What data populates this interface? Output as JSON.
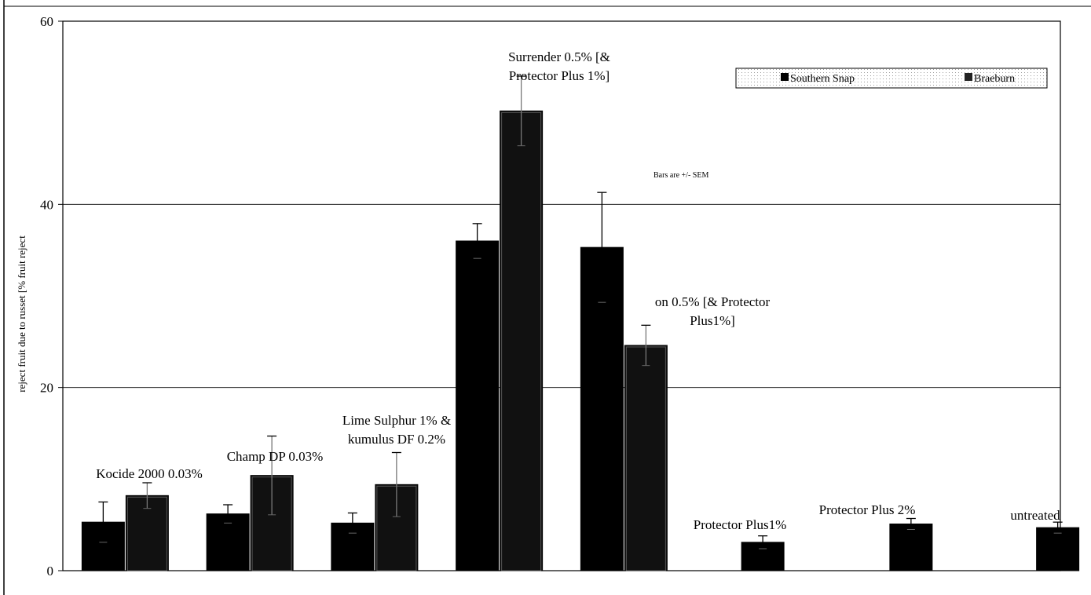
{
  "chart_data": {
    "type": "bar",
    "title": "",
    "xlabel": "",
    "ylabel": "reject fruit due to russet [%  fruit reject",
    "ylim": [
      0,
      60
    ],
    "yticks": [
      0,
      20,
      40,
      60
    ],
    "grid": true,
    "legend_placement": "top-right",
    "categories": [
      "Kocide 2000 0.03%",
      "Champ DP 0.03%",
      "Lime Sulphur 1% & kumulus DF 0.2%",
      "Surrender 0.5% [& Protector Plus 1%]",
      "...on 0.5% [& Protector Plus1%]",
      "Protector Plus1%",
      "Protector Plus 2%",
      "untreated"
    ],
    "series": [
      {
        "name": "Southern Snap",
        "color": "#000000",
        "values": [
          5.3,
          6.2,
          5.2,
          36.0,
          35.3,
          3.1,
          5.1,
          4.7
        ],
        "errors": [
          2.2,
          1.0,
          1.1,
          1.9,
          6.0,
          0.7,
          0.6,
          0.6
        ]
      },
      {
        "name": "Braeburn",
        "color": "#111111",
        "values": [
          8.2,
          10.4,
          9.4,
          50.2,
          24.6,
          null,
          null,
          null
        ],
        "errors": [
          1.4,
          4.3,
          3.5,
          3.8,
          2.2,
          null,
          null,
          null
        ]
      }
    ],
    "annotations": [
      {
        "lines": [
          "Kocide 2000 0.03%"
        ]
      },
      {
        "lines": [
          "Champ DP 0.03%"
        ]
      },
      {
        "lines": [
          "Lime Sulphur 1% &",
          "kumulus DF 0.2%"
        ]
      },
      {
        "lines": [
          "Surrender 0.5% [&",
          "Protector Plus 1%]"
        ]
      },
      {
        "lines": [
          "on 0.5% [& Protector",
          "Plus1%]"
        ]
      },
      {
        "lines": [
          "Protector Plus1%"
        ]
      },
      {
        "lines": [
          "Protector Plus 2%"
        ]
      },
      {
        "lines": [
          "untreated"
        ]
      }
    ],
    "note": "Bars are +/- SEM"
  }
}
